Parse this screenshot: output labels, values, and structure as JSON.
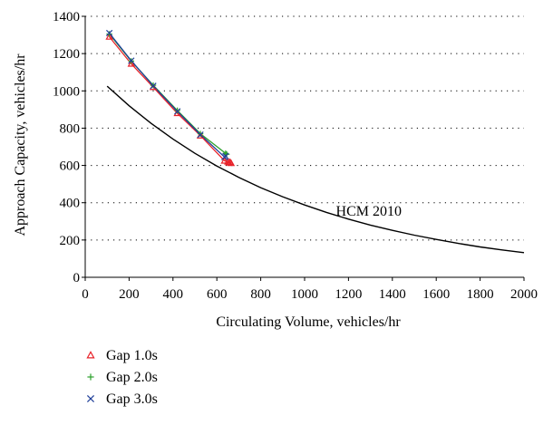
{
  "chart_data": {
    "type": "line",
    "title": "",
    "xlabel": "Circulating Volume, vehicles/hr",
    "ylabel": "Approach Capacity, vehicles/hr",
    "xlim": [
      0,
      2000
    ],
    "ylim": [
      0,
      1400
    ],
    "x_ticks": [
      "0",
      "200",
      "400",
      "600",
      "800",
      "1000",
      "1200",
      "1400",
      "1600",
      "1800",
      "2000"
    ],
    "y_ticks": [
      "0",
      "200",
      "400",
      "600",
      "800",
      "1000",
      "1200",
      "1400"
    ],
    "grid": "horizontal dotted",
    "legend_position": "below-left",
    "series": [
      {
        "name": "Gap 1.0s",
        "marker": "triangle",
        "color": "#e8232a",
        "x": [
          110,
          210,
          310,
          420,
          525,
          635,
          650,
          655,
          660,
          665
        ],
        "y": [
          1290,
          1145,
          1020,
          880,
          760,
          625,
          620,
          615,
          618,
          612
        ]
      },
      {
        "name": "Gap 2.0s",
        "marker": "plus",
        "color": "#2ca02c",
        "x": [
          110,
          210,
          310,
          420,
          525,
          640,
          645
        ],
        "y": [
          1305,
          1160,
          1030,
          895,
          770,
          665,
          660
        ]
      },
      {
        "name": "Gap 3.0s",
        "marker": "x",
        "color": "#1f3f99",
        "x": [
          110,
          210,
          310,
          420,
          525,
          635,
          640
        ],
        "y": [
          1310,
          1162,
          1027,
          890,
          765,
          645,
          650
        ]
      },
      {
        "name": "HCM 2010",
        "marker": "none",
        "color": "#000000",
        "x": [
          100,
          200,
          300,
          400,
          500,
          600,
          700,
          800,
          900,
          1000,
          1100,
          1200,
          1300,
          1400,
          1500,
          1600,
          1700,
          1800,
          1900,
          2000
        ],
        "y": [
          1025,
          920,
          826,
          742,
          665,
          597,
          536,
          481,
          432,
          388,
          348,
          312,
          280,
          252,
          226,
          203,
          182,
          163,
          147,
          132
        ]
      }
    ],
    "annotations": [
      {
        "text": "HCM 2010",
        "x": 1680,
        "y": 350
      }
    ]
  }
}
